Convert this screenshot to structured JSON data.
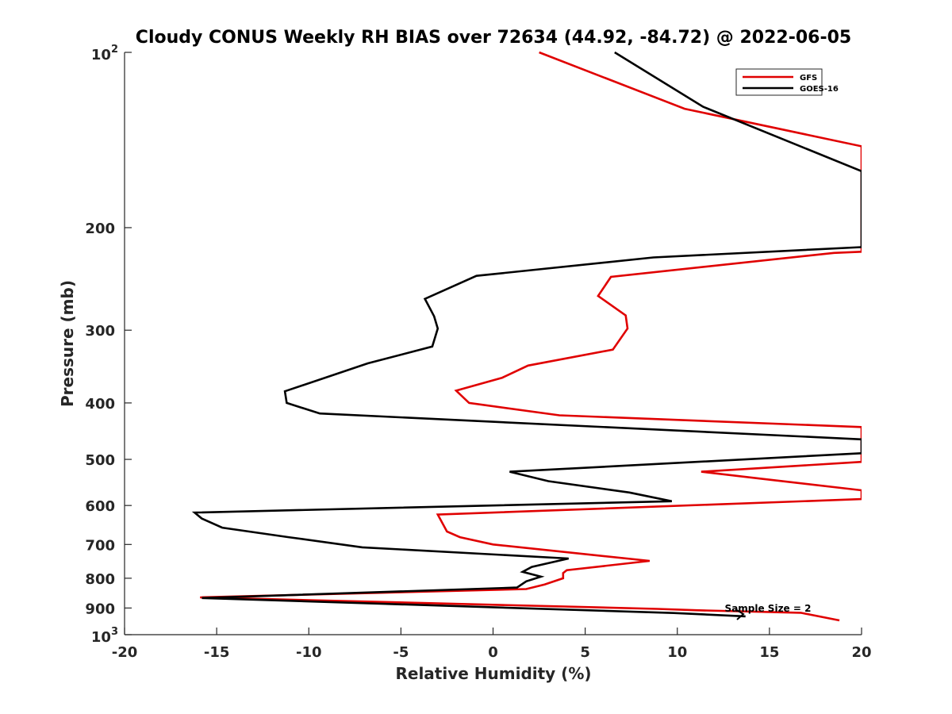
{
  "chart_data": {
    "type": "line",
    "title": "Cloudy CONUS Weekly RH BIAS over 72634 (44.92, -84.72) @ 2022-06-05",
    "xlabel": "Relative Humidity (%)",
    "ylabel": "Pressure (mb)",
    "xlim": [
      -20,
      20
    ],
    "ylim": [
      100,
      1000
    ],
    "y_scale": "log",
    "y_reversed": true,
    "x_ticks": [
      -20,
      -15,
      -10,
      -5,
      0,
      5,
      10,
      15,
      20
    ],
    "x_tick_labels": [
      "-20",
      "-15",
      "-10",
      "-5",
      "0",
      "5",
      "10",
      "15",
      "20"
    ],
    "y_ticks": [
      200,
      300,
      400,
      500,
      600,
      700,
      800,
      900
    ],
    "y_tick_labels": [
      "200",
      "300",
      "400",
      "500",
      "600",
      "700",
      "800",
      "900"
    ],
    "y_end_labels": [
      {
        "value": 100,
        "base": "10",
        "exp": "2"
      },
      {
        "value": 1000,
        "base": "10",
        "exp": "3"
      }
    ],
    "grid": false,
    "legend": "top-right",
    "annotation": "Sample Size = 2",
    "series": [
      {
        "name": "GFS",
        "color": "#e00000",
        "points": [
          [
            2.5,
            100
          ],
          [
            10.4,
            125
          ],
          [
            20,
            145
          ],
          [
            20,
            220
          ],
          [
            18.5,
            221
          ],
          [
            6.4,
            243
          ],
          [
            5.7,
            262
          ],
          [
            7.2,
            283
          ],
          [
            7.3,
            298
          ],
          [
            6.5,
            324
          ],
          [
            1.9,
            345
          ],
          [
            0.5,
            362
          ],
          [
            -2.0,
            381
          ],
          [
            -1.3,
            400
          ],
          [
            3.6,
            420
          ],
          [
            20,
            440
          ],
          [
            20,
            505
          ],
          [
            11.3,
            525
          ],
          [
            14.6,
            540
          ],
          [
            20,
            565
          ],
          [
            20,
            585
          ],
          [
            -3.0,
            622
          ],
          [
            -2.5,
            665
          ],
          [
            -1.8,
            680
          ],
          [
            0,
            700
          ],
          [
            8.5,
            747
          ],
          [
            4.0,
            775
          ],
          [
            3.8,
            784
          ],
          [
            3.8,
            800
          ],
          [
            2.8,
            820
          ],
          [
            1.8,
            835
          ],
          [
            -15.9,
            863
          ],
          [
            8.9,
            903
          ],
          [
            11.0,
            908
          ],
          [
            16.7,
            917
          ],
          [
            18.8,
            945
          ]
        ]
      },
      {
        "name": "GOES-16",
        "color": "#000000",
        "points": [
          [
            6.6,
            100
          ],
          [
            11.4,
            124
          ],
          [
            20,
            160
          ],
          [
            20,
            216
          ],
          [
            8.7,
            225
          ],
          [
            -0.9,
            242
          ],
          [
            -3.7,
            265
          ],
          [
            -3.2,
            284
          ],
          [
            -3.0,
            298
          ],
          [
            -3.3,
            320
          ],
          [
            -6.8,
            342
          ],
          [
            -11.3,
            382
          ],
          [
            -11.2,
            400
          ],
          [
            -9.4,
            417
          ],
          [
            20,
            462
          ],
          [
            20,
            488
          ],
          [
            0.9,
            525
          ],
          [
            3.0,
            545
          ],
          [
            7.4,
            570
          ],
          [
            9.7,
            590
          ],
          [
            -16.2,
            617
          ],
          [
            -15.8,
            632
          ],
          [
            -14.7,
            655
          ],
          [
            -11.1,
            680
          ],
          [
            -7.1,
            708
          ],
          [
            4.1,
            740
          ],
          [
            2.1,
            765
          ],
          [
            1.6,
            780
          ],
          [
            2.6,
            795
          ],
          [
            1.8,
            810
          ],
          [
            1.3,
            830
          ],
          [
            -15.8,
            865
          ],
          [
            9.8,
            918
          ],
          [
            13.7,
            930
          ]
        ]
      }
    ]
  }
}
